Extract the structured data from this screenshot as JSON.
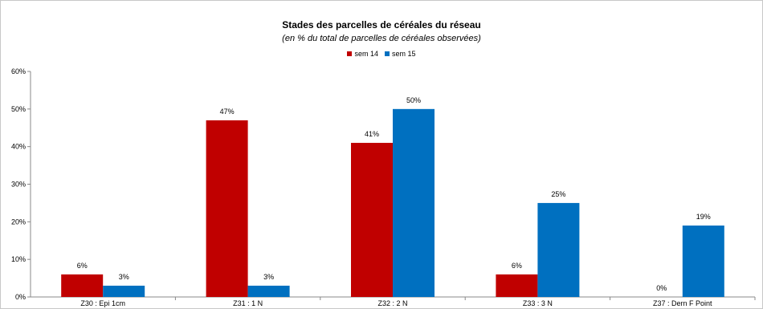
{
  "chart_data": {
    "type": "bar",
    "title": "Stades des parcelles de céréales du réseau",
    "subtitle": "(en %  du total de parcelles de céréales observées)",
    "categories": [
      "Z30 : Epi 1cm",
      "Z31 : 1 N",
      "Z32 : 2 N",
      "Z33 : 3 N",
      "Z37 : Dern F Point"
    ],
    "series": [
      {
        "name": "sem 14",
        "values": [
          6,
          47,
          41,
          6,
          0
        ],
        "labels": [
          "6%",
          "47%",
          "41%",
          "6%",
          "0%"
        ],
        "color": "#c00000"
      },
      {
        "name": "sem 15",
        "values": [
          3,
          3,
          50,
          25,
          19
        ],
        "labels": [
          "3%",
          "3%",
          "50%",
          "25%",
          "19%"
        ],
        "color": "#0070c0"
      }
    ],
    "ylim": [
      0,
      60
    ],
    "yticks": [
      0,
      10,
      20,
      30,
      40,
      50,
      60
    ],
    "ytick_labels": [
      "0%",
      "10%",
      "20%",
      "30%",
      "40%",
      "50%",
      "60%"
    ],
    "grid": false,
    "legend_position": "top-center"
  }
}
